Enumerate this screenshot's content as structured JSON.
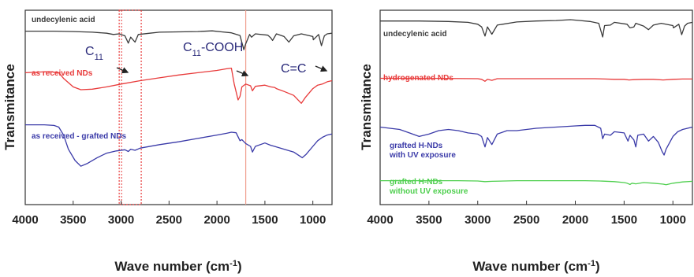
{
  "chart_data": [
    {
      "type": "line",
      "xlabel": "Wave number (cm",
      "xlabel_sup": "-1",
      "xlabel_end": ")",
      "ylabel": "Transmitance",
      "xlim": [
        4000,
        800
      ],
      "ticks": [
        "4000",
        "3500",
        "3000",
        "2500",
        "2000",
        "1500",
        "1000"
      ],
      "tick_values": [
        4000,
        3500,
        3000,
        2500,
        2000,
        1500,
        1000
      ],
      "grid": false,
      "series": [
        {
          "name": "undecylenic acid",
          "color": "#3a3a3a",
          "points": [
            [
              4000,
              0.58
            ],
            [
              3700,
              0.58
            ],
            [
              3500,
              0.57
            ],
            [
              3300,
              0.55
            ],
            [
              3150,
              0.52
            ],
            [
              3080,
              0.48
            ],
            [
              3020,
              0.5
            ],
            [
              2960,
              0.44
            ],
            [
              2925,
              0.22
            ],
            [
              2900,
              0.4
            ],
            [
              2855,
              0.25
            ],
            [
              2820,
              0.48
            ],
            [
              2700,
              0.52
            ],
            [
              2600,
              0.55
            ],
            [
              2400,
              0.56
            ],
            [
              2200,
              0.57
            ],
            [
              2050,
              0.59
            ],
            [
              1950,
              0.56
            ],
            [
              1850,
              0.53
            ],
            [
              1760,
              0.45
            ],
            [
              1720,
              0.02
            ],
            [
              1700,
              0.2
            ],
            [
              1660,
              0.48
            ],
            [
              1640,
              0.4
            ],
            [
              1600,
              0.5
            ],
            [
              1470,
              0.46
            ],
            [
              1440,
              0.38
            ],
            [
              1420,
              0.3
            ],
            [
              1380,
              0.5
            ],
            [
              1300,
              0.42
            ],
            [
              1250,
              0.25
            ],
            [
              1200,
              0.44
            ],
            [
              1120,
              0.5
            ],
            [
              1000,
              0.42
            ],
            [
              995,
              0.32
            ],
            [
              940,
              0.48
            ],
            [
              910,
              0.14
            ],
            [
              880,
              0.44
            ],
            [
              850,
              0.5
            ],
            [
              800,
              0.52
            ]
          ]
        },
        {
          "name": "as received NDs",
          "color": "#e83a3a",
          "points": [
            [
              4000,
              0.8
            ],
            [
              3750,
              0.82
            ],
            [
              3650,
              0.8
            ],
            [
              3600,
              0.7
            ],
            [
              3500,
              0.55
            ],
            [
              3420,
              0.5
            ],
            [
              3300,
              0.51
            ],
            [
              3150,
              0.55
            ],
            [
              3000,
              0.6
            ],
            [
              2800,
              0.66
            ],
            [
              2600,
              0.71
            ],
            [
              2400,
              0.76
            ],
            [
              2200,
              0.8
            ],
            [
              2000,
              0.84
            ],
            [
              1900,
              0.87
            ],
            [
              1850,
              0.88
            ],
            [
              1820,
              0.6
            ],
            [
              1780,
              0.32
            ],
            [
              1760,
              0.38
            ],
            [
              1740,
              0.55
            ],
            [
              1700,
              0.6
            ],
            [
              1650,
              0.57
            ],
            [
              1630,
              0.48
            ],
            [
              1600,
              0.56
            ],
            [
              1500,
              0.58
            ],
            [
              1440,
              0.55
            ],
            [
              1400,
              0.54
            ],
            [
              1380,
              0.52
            ],
            [
              1300,
              0.47
            ],
            [
              1200,
              0.4
            ],
            [
              1120,
              0.26
            ],
            [
              1080,
              0.36
            ],
            [
              1000,
              0.52
            ],
            [
              950,
              0.58
            ],
            [
              900,
              0.6
            ],
            [
              850,
              0.64
            ],
            [
              800,
              0.66
            ]
          ]
        },
        {
          "name": "as received - grafted NDs",
          "color": "#3a3aa8",
          "points": [
            [
              4000,
              0.88
            ],
            [
              3800,
              0.88
            ],
            [
              3700,
              0.87
            ],
            [
              3650,
              0.84
            ],
            [
              3600,
              0.7
            ],
            [
              3550,
              0.45
            ],
            [
              3480,
              0.25
            ],
            [
              3420,
              0.15
            ],
            [
              3350,
              0.2
            ],
            [
              3250,
              0.3
            ],
            [
              3150,
              0.38
            ],
            [
              3050,
              0.42
            ],
            [
              2960,
              0.44
            ],
            [
              2925,
              0.41
            ],
            [
              2900,
              0.45
            ],
            [
              2855,
              0.43
            ],
            [
              2800,
              0.47
            ],
            [
              2600,
              0.53
            ],
            [
              2400,
              0.58
            ],
            [
              2200,
              0.64
            ],
            [
              2000,
              0.7
            ],
            [
              1900,
              0.73
            ],
            [
              1850,
              0.75
            ],
            [
              1800,
              0.74
            ],
            [
              1760,
              0.6
            ],
            [
              1740,
              0.62
            ],
            [
              1700,
              0.55
            ],
            [
              1650,
              0.5
            ],
            [
              1630,
              0.4
            ],
            [
              1600,
              0.5
            ],
            [
              1500,
              0.56
            ],
            [
              1440,
              0.52
            ],
            [
              1400,
              0.5
            ],
            [
              1300,
              0.45
            ],
            [
              1200,
              0.4
            ],
            [
              1110,
              0.3
            ],
            [
              1070,
              0.36
            ],
            [
              1000,
              0.5
            ],
            [
              950,
              0.6
            ],
            [
              900,
              0.66
            ],
            [
              850,
              0.7
            ],
            [
              800,
              0.72
            ]
          ]
        }
      ],
      "annotations": [
        {
          "id": "c11",
          "text": "C",
          "sub": "11",
          "x": 2925
        },
        {
          "id": "c11cooh",
          "text": "C",
          "sub": "11",
          "suffix": "-COOH",
          "x": 1720
        },
        {
          "id": "cc",
          "text": "C=C",
          "x": 910
        }
      ],
      "markers": {
        "dotted_band": [
          3020,
          2790
        ],
        "line": 1700
      }
    },
    {
      "type": "line",
      "xlabel": "Wave number (cm",
      "xlabel_sup": "-1",
      "xlabel_end": ")",
      "ylabel": "Transmitance",
      "xlim": [
        4000,
        800
      ],
      "ticks": [
        "4000",
        "3500",
        "3000",
        "2500",
        "2000",
        "1500",
        "1000"
      ],
      "tick_values": [
        4000,
        3500,
        3000,
        2500,
        2000,
        1500,
        1000
      ],
      "grid": false,
      "series": [
        {
          "name": "undecylenic acid",
          "color": "#3a3a3a",
          "points": [
            [
              4000,
              0.85
            ],
            [
              3600,
              0.85
            ],
            [
              3300,
              0.84
            ],
            [
              3100,
              0.82
            ],
            [
              3000,
              0.78
            ],
            [
              2960,
              0.72
            ],
            [
              2925,
              0.52
            ],
            [
              2900,
              0.72
            ],
            [
              2855,
              0.56
            ],
            [
              2800,
              0.76
            ],
            [
              2600,
              0.83
            ],
            [
              2400,
              0.85
            ],
            [
              2200,
              0.86
            ],
            [
              2050,
              0.88
            ],
            [
              1950,
              0.86
            ],
            [
              1850,
              0.84
            ],
            [
              1760,
              0.8
            ],
            [
              1720,
              0.5
            ],
            [
              1700,
              0.75
            ],
            [
              1640,
              0.76
            ],
            [
              1600,
              0.82
            ],
            [
              1470,
              0.78
            ],
            [
              1440,
              0.7
            ],
            [
              1400,
              0.72
            ],
            [
              1380,
              0.8
            ],
            [
              1300,
              0.74
            ],
            [
              1250,
              0.66
            ],
            [
              1200,
              0.76
            ],
            [
              1120,
              0.8
            ],
            [
              1000,
              0.75
            ],
            [
              995,
              0.7
            ],
            [
              940,
              0.78
            ],
            [
              910,
              0.55
            ],
            [
              880,
              0.74
            ],
            [
              850,
              0.8
            ],
            [
              800,
              0.82
            ]
          ]
        },
        {
          "name": "hydrogenated NDs",
          "color": "#e83a3a",
          "points": [
            [
              4000,
              0.63
            ],
            [
              3500,
              0.63
            ],
            [
              3000,
              0.62
            ],
            [
              2960,
              0.6
            ],
            [
              2925,
              0.54
            ],
            [
              2900,
              0.6
            ],
            [
              2855,
              0.57
            ],
            [
              2800,
              0.62
            ],
            [
              2500,
              0.62
            ],
            [
              2200,
              0.62
            ],
            [
              2000,
              0.62
            ],
            [
              1800,
              0.62
            ],
            [
              1700,
              0.61
            ],
            [
              1600,
              0.6
            ],
            [
              1500,
              0.6
            ],
            [
              1450,
              0.58
            ],
            [
              1400,
              0.59
            ],
            [
              1300,
              0.6
            ],
            [
              1200,
              0.6
            ],
            [
              1100,
              0.58
            ],
            [
              1000,
              0.6
            ],
            [
              900,
              0.61
            ],
            [
              800,
              0.61
            ]
          ]
        },
        {
          "name": "grafted H-NDs\nwith UV exposure",
          "color": "#3a3aa8",
          "points": [
            [
              4000,
              0.52
            ],
            [
              3800,
              0.48
            ],
            [
              3700,
              0.42
            ],
            [
              3600,
              0.36
            ],
            [
              3500,
              0.4
            ],
            [
              3400,
              0.46
            ],
            [
              3300,
              0.48
            ],
            [
              3200,
              0.46
            ],
            [
              3100,
              0.42
            ],
            [
              3000,
              0.4
            ],
            [
              2960,
              0.36
            ],
            [
              2925,
              0.18
            ],
            [
              2900,
              0.34
            ],
            [
              2855,
              0.22
            ],
            [
              2800,
              0.4
            ],
            [
              2700,
              0.46
            ],
            [
              2600,
              0.46
            ],
            [
              2500,
              0.48
            ],
            [
              2400,
              0.5
            ],
            [
              2200,
              0.52
            ],
            [
              2000,
              0.54
            ],
            [
              1900,
              0.55
            ],
            [
              1800,
              0.55
            ],
            [
              1740,
              0.5
            ],
            [
              1720,
              0.32
            ],
            [
              1700,
              0.4
            ],
            [
              1640,
              0.38
            ],
            [
              1600,
              0.44
            ],
            [
              1500,
              0.42
            ],
            [
              1460,
              0.28
            ],
            [
              1440,
              0.38
            ],
            [
              1400,
              0.3
            ],
            [
              1380,
              0.18
            ],
            [
              1360,
              0.38
            ],
            [
              1300,
              0.4
            ],
            [
              1250,
              0.28
            ],
            [
              1200,
              0.36
            ],
            [
              1150,
              0.26
            ],
            [
              1110,
              0.1
            ],
            [
              1090,
              0.04
            ],
            [
              1070,
              0.14
            ],
            [
              1000,
              0.36
            ],
            [
              950,
              0.44
            ],
            [
              900,
              0.48
            ],
            [
              850,
              0.5
            ],
            [
              800,
              0.52
            ]
          ]
        },
        {
          "name": "grafted H-NDs\nwithout UV exposure",
          "color": "#4ecf4e",
          "points": [
            [
              4000,
              0.16
            ],
            [
              3500,
              0.16
            ],
            [
              3200,
              0.16
            ],
            [
              3000,
              0.15
            ],
            [
              2925,
              0.13
            ],
            [
              2855,
              0.14
            ],
            [
              2600,
              0.16
            ],
            [
              2200,
              0.16
            ],
            [
              1900,
              0.16
            ],
            [
              1750,
              0.15
            ],
            [
              1600,
              0.13
            ],
            [
              1500,
              0.1
            ],
            [
              1470,
              0.08
            ],
            [
              1440,
              0.04
            ],
            [
              1420,
              0.08
            ],
            [
              1380,
              0.06
            ],
            [
              1300,
              0.1
            ],
            [
              1200,
              0.08
            ],
            [
              1100,
              0.05
            ],
            [
              1070,
              0.03
            ],
            [
              1000,
              0.08
            ],
            [
              900,
              0.12
            ],
            [
              800,
              0.14
            ]
          ]
        }
      ]
    }
  ]
}
